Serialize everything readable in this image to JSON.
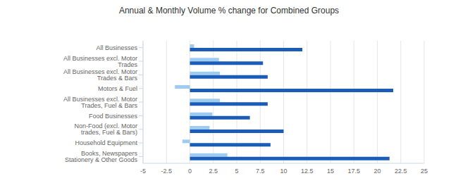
{
  "chart_data": {
    "type": "bar",
    "title": "Annual & Monthly Volume % change for Combined Groups",
    "orientation": "horizontal",
    "categories": [
      "All Businesses",
      "All Businesses excl. Motor Trades",
      "All Businesses excl. Motor Trades & Bars",
      "Motors & Fuel",
      "All Businesses excl. Motor Trades, Fuel & Bars",
      "Food Businesses",
      "Non-Food (excl. Motor trades, Fuel & Bars)",
      "Household Equipment",
      "Books, Newspapers Stationery & Other Goods"
    ],
    "series": [
      {
        "color": "#9ecbf0",
        "values": [
          0.45,
          3.1,
          3.2,
          -1.6,
          3.2,
          2.4,
          2.1,
          -0.8,
          4.0
        ]
      },
      {
        "color": "#1a5cb8",
        "values": [
          12.0,
          7.8,
          8.3,
          21.7,
          8.3,
          6.4,
          10.0,
          8.6,
          21.3
        ]
      }
    ],
    "xlim": [
      -5,
      25
    ],
    "xticks": [
      -5,
      -2.5,
      0,
      2.5,
      5,
      7.5,
      10,
      12.5,
      15,
      17.5,
      20,
      22.5,
      25
    ],
    "grid": true
  }
}
